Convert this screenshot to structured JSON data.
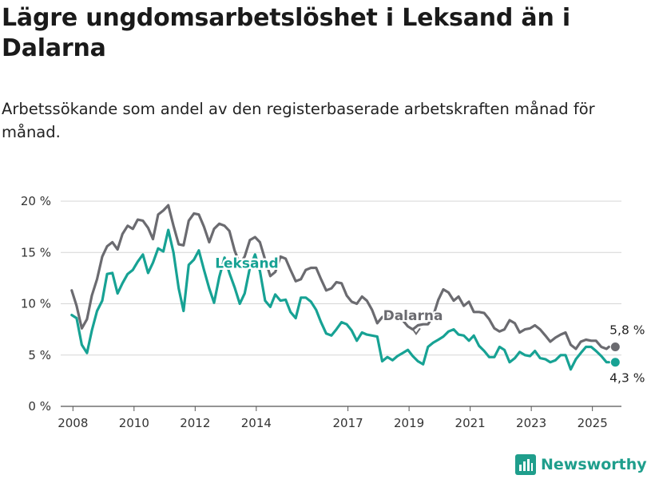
{
  "title": "Lägre ungdomsarbetslöshet i Leksand än i Dalarna",
  "subtitle": "Arbetssökande som andel av den registerbaserade arbetskraften månad för månad.",
  "brand": {
    "name": "Newsworthy",
    "color": "#1f9e8c",
    "icon": "bar-chart-icon"
  },
  "chart_data": {
    "type": "line",
    "x_unit": "year (decimal)",
    "ylim": [
      0,
      20
    ],
    "xlim": [
      2007.6,
      2025.95
    ],
    "y_ticks": [
      0,
      5,
      10,
      15,
      20
    ],
    "y_tick_labels": [
      "0 %",
      "5 %",
      "10 %",
      "15 %",
      "20 %"
    ],
    "x_ticks": [
      2008,
      2010,
      2012,
      2014,
      2017,
      2019,
      2021,
      2023,
      2025
    ],
    "x_tick_labels": [
      "2008",
      "2010",
      "2012",
      "2014",
      "2017",
      "2019",
      "2021",
      "2023",
      "2025"
    ],
    "grid": "horizontal",
    "series": [
      {
        "name": "Dalarna",
        "color": "#6b6b70",
        "end_label": "5,8 %",
        "x": [
          2007.96,
          2008.12,
          2008.29,
          2008.46,
          2008.62,
          2008.79,
          2008.96,
          2009.12,
          2009.29,
          2009.46,
          2009.62,
          2009.79,
          2009.96,
          2010.12,
          2010.29,
          2010.46,
          2010.62,
          2010.79,
          2010.96,
          2011.12,
          2011.29,
          2011.46,
          2011.62,
          2011.79,
          2011.96,
          2012.12,
          2012.29,
          2012.46,
          2012.62,
          2012.79,
          2012.96,
          2013.12,
          2013.29,
          2013.46,
          2013.62,
          2013.79,
          2013.96,
          2014.12,
          2014.29,
          2014.46,
          2014.62,
          2014.79,
          2014.96,
          2015.12,
          2015.29,
          2015.46,
          2015.62,
          2015.79,
          2015.96,
          2016.12,
          2016.29,
          2016.46,
          2016.62,
          2016.79,
          2016.96,
          2017.12,
          2017.29,
          2017.46,
          2017.62,
          2017.79,
          2017.96,
          2018.12,
          2018.29,
          2018.46,
          2018.62,
          2018.79,
          2018.96,
          2019.12,
          2019.29,
          2019.46,
          2019.62,
          2019.79,
          2019.96,
          2020.12,
          2020.29,
          2020.46,
          2020.62,
          2020.79,
          2020.96,
          2021.12,
          2021.29,
          2021.46,
          2021.62,
          2021.79,
          2021.96,
          2022.12,
          2022.29,
          2022.46,
          2022.62,
          2022.79,
          2022.96,
          2023.12,
          2023.29,
          2023.46,
          2023.62,
          2023.79,
          2023.96,
          2024.12,
          2024.29,
          2024.46,
          2024.62,
          2024.79,
          2024.96,
          2025.12,
          2025.29,
          2025.46,
          2025.54
        ],
        "y": [
          11.3,
          9.8,
          7.6,
          8.5,
          10.8,
          12.4,
          14.6,
          15.6,
          16.0,
          15.3,
          16.8,
          17.6,
          17.3,
          18.2,
          18.1,
          17.4,
          16.3,
          18.7,
          19.1,
          19.6,
          17.6,
          15.8,
          15.7,
          18.1,
          18.8,
          18.7,
          17.5,
          16.0,
          17.3,
          17.8,
          17.6,
          17.1,
          15.2,
          13.9,
          14.6,
          16.2,
          16.5,
          16.0,
          14.3,
          12.7,
          13.1,
          14.6,
          14.4,
          13.3,
          12.2,
          12.4,
          13.3,
          13.5,
          13.5,
          12.4,
          11.3,
          11.5,
          12.1,
          12.0,
          10.8,
          10.2,
          10.0,
          10.7,
          10.3,
          9.4,
          8.1,
          8.7,
          8.8,
          8.8,
          8.6,
          8.4,
          7.8,
          7.5,
          7.9,
          8.0,
          8.0,
          8.8,
          10.4,
          11.4,
          11.1,
          10.3,
          10.7,
          9.8,
          10.2,
          9.2,
          9.2,
          9.1,
          8.5,
          7.6,
          7.3,
          7.5,
          8.4,
          8.1,
          7.2,
          7.5,
          7.6,
          7.9,
          7.5,
          6.9,
          6.3,
          6.7,
          7.0,
          7.2,
          6.0,
          5.6,
          6.3,
          6.5,
          6.4,
          6.4,
          5.8,
          5.6,
          5.8
        ]
      },
      {
        "name": "Leksand",
        "color": "#17a294",
        "end_label": "4,3 %",
        "x": [
          2007.96,
          2008.12,
          2008.29,
          2008.46,
          2008.62,
          2008.79,
          2008.96,
          2009.12,
          2009.29,
          2009.46,
          2009.62,
          2009.79,
          2009.96,
          2010.12,
          2010.29,
          2010.46,
          2010.62,
          2010.79,
          2010.96,
          2011.12,
          2011.29,
          2011.46,
          2011.62,
          2011.79,
          2011.96,
          2012.12,
          2012.29,
          2012.46,
          2012.62,
          2012.79,
          2012.96,
          2013.12,
          2013.29,
          2013.46,
          2013.62,
          2013.79,
          2013.96,
          2014.12,
          2014.29,
          2014.46,
          2014.62,
          2014.79,
          2014.96,
          2015.12,
          2015.29,
          2015.46,
          2015.62,
          2015.79,
          2015.96,
          2016.12,
          2016.29,
          2016.46,
          2016.62,
          2016.79,
          2016.96,
          2017.12,
          2017.29,
          2017.46,
          2017.62,
          2017.79,
          2017.96,
          2018.12,
          2018.29,
          2018.46,
          2018.62,
          2018.79,
          2018.96,
          2019.12,
          2019.29,
          2019.46,
          2019.62,
          2019.79,
          2019.96,
          2020.12,
          2020.29,
          2020.46,
          2020.62,
          2020.79,
          2020.96,
          2021.12,
          2021.29,
          2021.46,
          2021.62,
          2021.79,
          2021.96,
          2022.12,
          2022.29,
          2022.46,
          2022.62,
          2022.79,
          2022.96,
          2023.12,
          2023.29,
          2023.46,
          2023.62,
          2023.79,
          2023.96,
          2024.12,
          2024.29,
          2024.46,
          2024.62,
          2024.79,
          2024.96,
          2025.12,
          2025.29,
          2025.46,
          2025.54
        ],
        "y": [
          8.9,
          8.6,
          6.0,
          5.2,
          7.4,
          9.3,
          10.3,
          12.9,
          13.0,
          11.0,
          12.0,
          12.9,
          13.3,
          14.1,
          14.8,
          13.0,
          14.0,
          15.4,
          15.1,
          17.2,
          15.0,
          11.5,
          9.3,
          13.8,
          14.3,
          15.2,
          13.3,
          11.5,
          10.1,
          12.6,
          14.5,
          13.0,
          11.6,
          10.0,
          11.0,
          13.5,
          14.8,
          13.2,
          10.3,
          9.7,
          10.9,
          10.3,
          10.4,
          9.2,
          8.6,
          10.6,
          10.6,
          10.2,
          9.4,
          8.2,
          7.1,
          6.9,
          7.5,
          8.2,
          8.0,
          7.4,
          6.4,
          7.2,
          7.0,
          6.9,
          6.8,
          4.4,
          4.8,
          4.5,
          4.9,
          5.2,
          5.5,
          4.9,
          4.4,
          4.1,
          5.8,
          6.2,
          6.5,
          6.8,
          7.3,
          7.5,
          7.0,
          6.9,
          6.4,
          6.9,
          5.9,
          5.4,
          4.8,
          4.8,
          5.8,
          5.5,
          4.3,
          4.7,
          5.3,
          5.0,
          4.9,
          5.4,
          4.7,
          4.6,
          4.3,
          4.5,
          5.0,
          5.0,
          3.6,
          4.6,
          5.2,
          5.8,
          5.8,
          5.4,
          4.9,
          4.3,
          4.3
        ]
      }
    ]
  }
}
